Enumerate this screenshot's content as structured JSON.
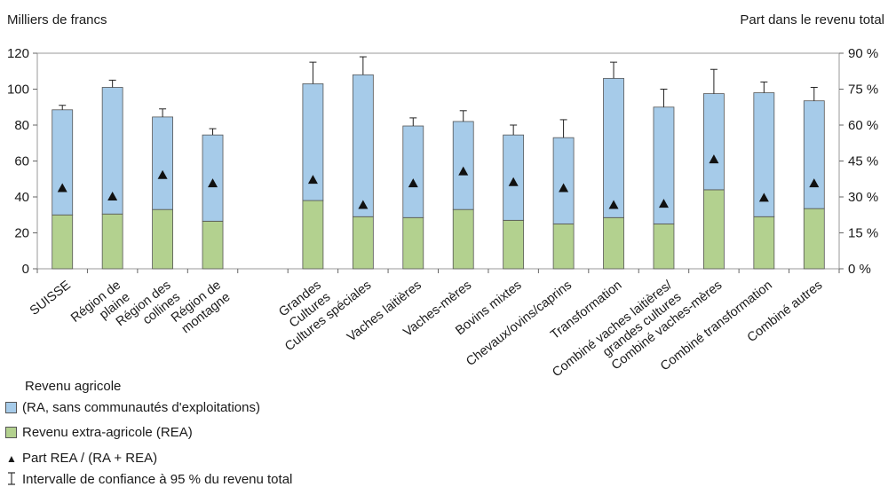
{
  "chart_data": {
    "type": "bar",
    "stacked": true,
    "y_left_title": "Milliers de francs",
    "y_right_title": "Part dans le revenu total",
    "ylim": [
      0,
      120
    ],
    "y_ticks": [
      "0",
      "20",
      "40",
      "60",
      "80",
      "100",
      "120"
    ],
    "y2lim": [
      0,
      90
    ],
    "y2_ticks": [
      "0 %",
      "15 %",
      "30 %",
      "45 %",
      "60 %",
      "75 %",
      "90 %"
    ],
    "categories": [
      [
        "SUISSE"
      ],
      [
        "Région de",
        "plaine"
      ],
      [
        "Région des",
        "collines"
      ],
      [
        "Région de",
        "montagne"
      ],
      [],
      [
        "Grandes",
        "Cultures"
      ],
      [
        "Cultures spéciales"
      ],
      [
        "Vaches laitières"
      ],
      [
        "Vaches-mères"
      ],
      [
        "Bovins mixtes"
      ],
      [
        "Chevaux/ovins/caprins"
      ],
      [
        "Transformation"
      ],
      [
        "Combiné vaches laitières/",
        "grandes cultures"
      ],
      [
        "Combiné vaches-mères"
      ],
      [
        "Combiné transformation"
      ],
      [
        "Combiné autres"
      ]
    ],
    "series": [
      {
        "name": "Revenu extra-agricole (REA)",
        "color": "#b3d18f",
        "values": [
          30,
          30.5,
          33,
          26.5,
          null,
          38,
          29,
          28.5,
          33,
          27,
          25,
          28.5,
          25,
          44,
          29,
          33.5
        ]
      },
      {
        "name": "Revenu agricole (RA, sans communautés d'exploitations)",
        "color": "#a6cbe9",
        "values": [
          58.5,
          70.5,
          51.5,
          48,
          null,
          65,
          79,
          51,
          49,
          47.5,
          48,
          77.5,
          65,
          53.5,
          69,
          60
        ]
      }
    ],
    "totals": [
      88.5,
      101,
      84.5,
      74.5,
      null,
      103,
      108,
      79.5,
      82,
      74.5,
      73,
      106,
      90,
      97.5,
      98,
      93.5
    ],
    "error_bars": [
      [
        86,
        91
      ],
      [
        97,
        105
      ],
      [
        80,
        89
      ],
      [
        71,
        78
      ],
      null,
      [
        91,
        115
      ],
      [
        98,
        118
      ],
      [
        75,
        84
      ],
      [
        76,
        88
      ],
      [
        69,
        80
      ],
      [
        63,
        83
      ],
      [
        97,
        115
      ],
      [
        80,
        100
      ],
      [
        84,
        111
      ],
      [
        92,
        104
      ],
      [
        86,
        101
      ]
    ],
    "share_rea_percent": [
      33.5,
      30,
      39,
      35.5,
      null,
      37,
      26.5,
      35.5,
      40.5,
      36,
      33.5,
      26.5,
      27,
      45.5,
      29.5,
      35.5
    ],
    "legend": {
      "ra_line1": "Revenu agricole",
      "ra_line2": "(RA, sans communautés d'exploitations)",
      "rea": "Revenu extra-agricole (REA)",
      "share": "Part REA / (RA + REA)",
      "ci": "Intervalle de confiance à 95 % du revenu total"
    }
  }
}
